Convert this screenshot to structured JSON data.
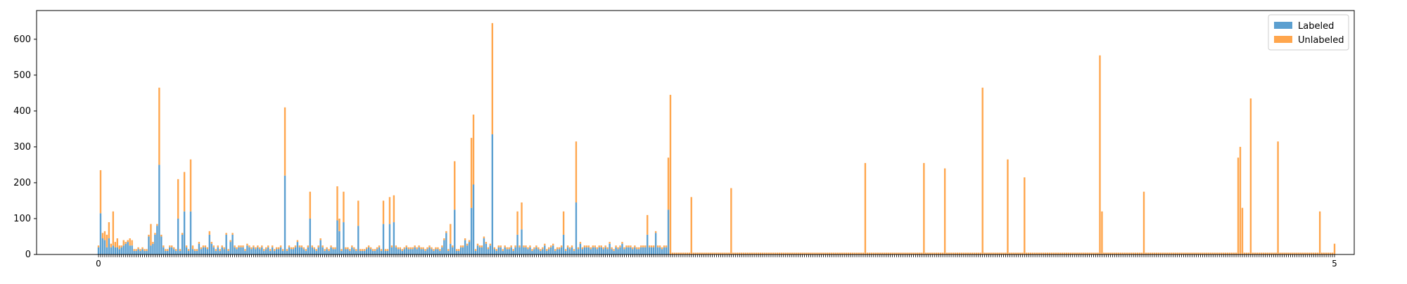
{
  "chart_data": {
    "type": "bar",
    "stacked": true,
    "x_tick_labels": [
      "0",
      "5"
    ],
    "ylim": [
      0,
      680
    ],
    "yticks": [
      0,
      100,
      200,
      300,
      400,
      500,
      600
    ],
    "legend": {
      "placement": "top-right"
    },
    "grid": false,
    "colors": {
      "Labeled": "#5b9fd0",
      "Unlabeled": "#ffa64d"
    },
    "series": [
      {
        "name": "Labeled",
        "values": [
          20,
          115,
          45,
          40,
          20,
          45,
          20,
          25,
          20,
          20,
          15,
          20,
          25,
          30,
          35,
          25,
          25,
          10,
          10,
          15,
          10,
          15,
          10,
          10,
          50,
          25,
          30,
          55,
          80,
          250,
          50,
          20,
          10,
          10,
          20,
          20,
          15,
          10,
          100,
          10,
          55,
          120,
          20,
          10,
          120,
          15,
          10,
          10,
          30,
          15,
          20,
          20,
          15,
          55,
          30,
          20,
          10,
          20,
          10,
          20,
          15,
          55,
          10,
          35,
          55,
          20,
          15,
          20,
          20,
          20,
          10,
          25,
          20,
          15,
          20,
          15,
          20,
          15,
          20,
          10,
          15,
          20,
          10,
          20,
          10,
          15,
          15,
          20,
          10,
          220,
          10,
          20,
          15,
          15,
          20,
          35,
          20,
          20,
          15,
          10,
          20,
          100,
          20,
          15,
          10,
          20,
          40,
          20,
          10,
          15,
          10,
          20,
          15,
          15,
          95,
          65,
          10,
          90,
          15,
          15,
          10,
          20,
          15,
          10,
          80,
          10,
          10,
          10,
          15,
          20,
          15,
          10,
          10,
          15,
          20,
          10,
          85,
          10,
          10,
          85,
          20,
          90,
          20,
          15,
          15,
          10,
          15,
          20,
          15,
          15,
          15,
          20,
          15,
          20,
          15,
          15,
          10,
          15,
          20,
          15,
          10,
          15,
          15,
          10,
          20,
          40,
          60,
          10,
          30,
          20,
          125,
          10,
          10,
          20,
          20,
          40,
          25,
          35,
          130,
          195,
          10,
          25,
          20,
          20,
          45,
          30,
          15,
          25,
          335,
          15,
          10,
          20,
          20,
          10,
          20,
          15,
          15,
          20,
          10,
          20,
          55,
          20,
          70,
          20,
          20,
          15,
          20,
          10,
          15,
          20,
          15,
          10,
          15,
          25,
          10,
          15,
          20,
          25,
          10,
          15,
          15,
          20,
          55,
          10,
          20,
          15,
          20,
          10,
          145,
          15,
          30,
          15,
          20,
          20,
          20,
          15,
          20,
          20,
          15,
          20,
          20,
          15,
          20,
          15,
          30,
          15,
          10,
          20,
          15,
          20,
          30,
          15,
          20,
          20,
          20,
          15,
          20,
          15,
          15,
          20,
          20,
          20,
          55,
          20,
          20,
          20,
          60,
          20,
          20,
          15,
          20,
          20,
          125
        ]
      },
      {
        "name": "Unlabeled",
        "values": [
          5,
          120,
          15,
          25,
          35,
          45,
          10,
          95,
          15,
          25,
          10,
          5,
          15,
          5,
          5,
          20,
          15,
          5,
          5,
          5,
          5,
          5,
          5,
          5,
          5,
          60,
          5,
          5,
          5,
          215,
          5,
          5,
          5,
          5,
          5,
          5,
          5,
          5,
          110,
          5,
          5,
          110,
          5,
          5,
          145,
          10,
          5,
          5,
          5,
          5,
          5,
          5,
          5,
          10,
          5,
          5,
          5,
          5,
          5,
          5,
          5,
          5,
          5,
          5,
          5,
          5,
          5,
          5,
          5,
          5,
          5,
          5,
          5,
          5,
          5,
          5,
          5,
          5,
          5,
          5,
          5,
          5,
          5,
          5,
          5,
          5,
          5,
          5,
          5,
          190,
          5,
          5,
          5,
          5,
          5,
          5,
          5,
          5,
          5,
          5,
          5,
          75,
          5,
          5,
          5,
          5,
          5,
          5,
          5,
          5,
          5,
          5,
          5,
          5,
          95,
          35,
          5,
          85,
          5,
          5,
          5,
          5,
          5,
          5,
          70,
          5,
          5,
          5,
          5,
          5,
          5,
          5,
          5,
          5,
          5,
          5,
          65,
          5,
          5,
          75,
          5,
          75,
          5,
          5,
          5,
          5,
          5,
          5,
          5,
          5,
          5,
          5,
          5,
          5,
          5,
          5,
          5,
          5,
          5,
          5,
          5,
          5,
          5,
          5,
          5,
          5,
          5,
          5,
          55,
          5,
          135,
          5,
          5,
          5,
          5,
          5,
          5,
          5,
          195,
          195,
          5,
          5,
          5,
          5,
          5,
          5,
          5,
          5,
          310,
          5,
          5,
          5,
          5,
          5,
          5,
          5,
          5,
          5,
          5,
          5,
          65,
          5,
          75,
          5,
          5,
          5,
          5,
          5,
          5,
          5,
          5,
          5,
          5,
          5,
          5,
          5,
          5,
          5,
          5,
          5,
          5,
          5,
          65,
          5,
          5,
          5,
          5,
          5,
          170,
          5,
          5,
          5,
          5,
          5,
          5,
          5,
          5,
          5,
          5,
          5,
          5,
          5,
          5,
          5,
          5,
          5,
          5,
          5,
          5,
          5,
          5,
          5,
          5,
          5,
          5,
          5,
          5,
          5,
          5,
          5,
          5,
          5,
          55,
          5,
          5,
          5,
          5,
          5,
          5,
          5,
          5,
          5,
          145,
          445,
          5,
          5,
          5,
          5,
          5,
          5,
          5,
          5,
          5,
          160,
          5,
          5,
          5,
          5,
          5,
          5,
          5,
          5,
          5,
          5,
          5,
          5,
          5,
          5,
          5,
          5,
          5,
          5,
          185,
          5,
          5,
          5,
          5,
          5,
          5,
          5,
          5,
          5,
          5,
          5,
          5,
          5,
          5,
          5,
          5,
          5,
          5,
          5,
          5,
          5,
          5,
          5,
          5,
          5,
          5,
          5,
          5,
          5,
          5,
          5,
          5,
          5,
          5,
          5,
          5,
          5,
          5,
          5,
          5,
          5,
          5,
          5,
          5,
          5,
          5,
          5,
          5,
          5,
          5,
          5,
          5,
          5,
          5,
          5,
          5,
          5,
          5,
          5,
          5,
          5,
          5,
          5,
          255,
          5,
          5,
          5,
          5,
          5,
          5,
          5,
          5,
          5,
          5,
          5,
          5,
          5,
          5,
          5,
          5,
          5,
          5,
          5,
          5,
          5,
          5,
          5,
          5,
          5,
          5,
          5,
          255,
          5,
          5,
          5,
          5,
          5,
          5,
          5,
          5,
          5,
          240,
          5,
          5,
          5,
          5,
          5,
          5,
          5,
          5,
          5,
          5,
          5,
          5,
          5,
          5,
          5,
          5,
          5,
          465,
          5,
          5,
          5,
          5,
          5,
          5,
          5,
          5,
          5,
          5,
          5,
          265,
          5,
          5,
          5,
          5,
          5,
          5,
          5,
          215,
          5,
          5,
          5,
          5,
          5,
          5,
          5,
          5,
          5,
          5,
          5,
          5,
          5,
          5,
          5,
          5,
          5,
          5,
          5,
          5,
          5,
          5,
          5,
          5,
          5,
          5,
          5,
          5,
          5,
          5,
          5,
          5,
          5,
          5,
          5,
          555,
          120,
          5,
          5,
          5,
          5,
          5,
          5,
          5,
          5,
          5,
          5,
          5,
          5,
          5,
          5,
          5,
          5,
          5,
          5,
          5,
          175,
          5,
          5,
          5,
          5,
          5,
          5,
          5,
          5,
          5,
          5,
          5,
          5,
          5,
          5,
          5,
          5,
          5,
          5,
          5,
          5,
          5,
          5,
          5,
          5,
          5,
          5,
          5,
          5,
          5,
          5,
          5,
          5,
          5,
          5,
          5,
          5,
          5,
          5,
          5,
          5,
          5,
          5,
          5,
          5,
          270,
          300,
          130,
          5,
          5,
          5,
          435,
          5,
          5,
          5,
          5,
          5,
          5,
          5,
          5,
          5,
          5,
          5,
          5,
          315,
          5,
          5,
          5,
          5,
          5,
          5,
          5,
          5,
          5,
          5,
          5,
          5,
          5,
          5,
          5,
          5,
          5,
          5,
          5,
          120,
          5,
          5,
          5,
          5,
          5,
          5,
          30
        ]
      }
    ]
  }
}
